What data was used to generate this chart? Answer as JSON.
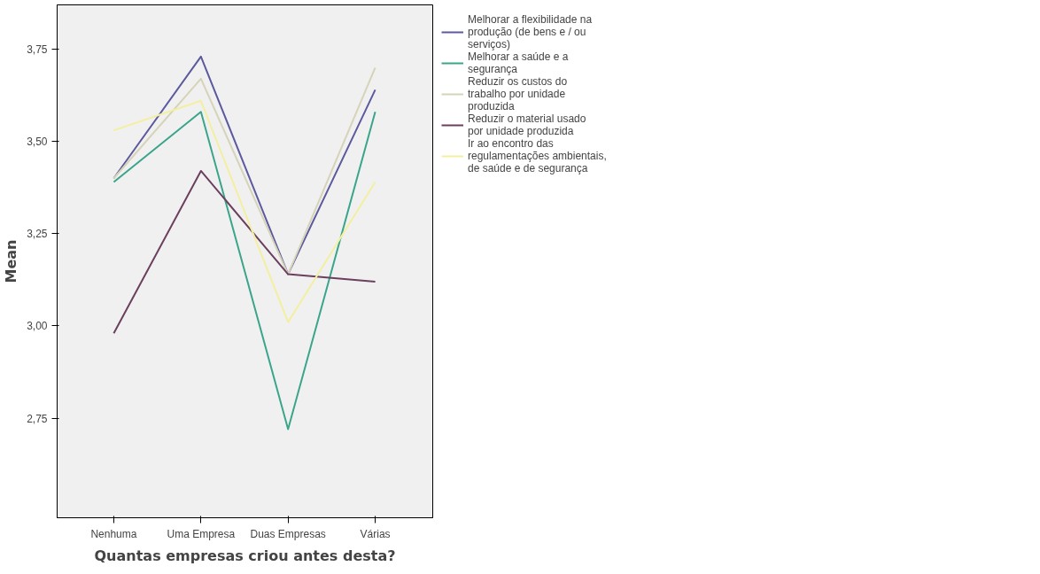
{
  "chart_data": {
    "type": "line",
    "xlabel": "Quantas empresas criou antes desta?",
    "ylabel": "Mean",
    "categories": [
      "Nenhuma",
      "Uma Empresa",
      "Duas Empresas",
      "Várias"
    ],
    "ylim": [
      2.48,
      3.87
    ],
    "yticks": [
      {
        "value": 2.75,
        "label": "2,75"
      },
      {
        "value": 3.0,
        "label": "3,00"
      },
      {
        "value": 3.25,
        "label": "3,25"
      },
      {
        "value": 3.5,
        "label": "3,50"
      },
      {
        "value": 3.75,
        "label": "3,75"
      }
    ],
    "grid": false,
    "legend": "right",
    "marker": "none",
    "line_style": "solid",
    "series": [
      {
        "name": "Melhorar a flexibilidade na produção (de bens e / ou serviços)",
        "color": "#5c5a9e",
        "values": [
          3.4,
          3.73,
          3.14,
          3.64
        ]
      },
      {
        "name": "Melhorar a saúde e a segurança",
        "color": "#3aa58a",
        "values": [
          3.39,
          3.58,
          2.72,
          3.58
        ]
      },
      {
        "name": "Reduzir os custos do trabalho por unidade produzida",
        "color": "#d6d3b8",
        "values": [
          3.4,
          3.67,
          3.14,
          3.7
        ]
      },
      {
        "name": "Reduzir o material usado por unidade produzida",
        "color": "#6b3f5e",
        "values": [
          2.98,
          3.42,
          3.14,
          3.12
        ]
      },
      {
        "name": "Ir ao encontro das regulamentações ambientais, de saúde e de segurança",
        "color": "#f2f0a0",
        "values": [
          3.53,
          3.61,
          3.01,
          3.39
        ]
      }
    ]
  }
}
